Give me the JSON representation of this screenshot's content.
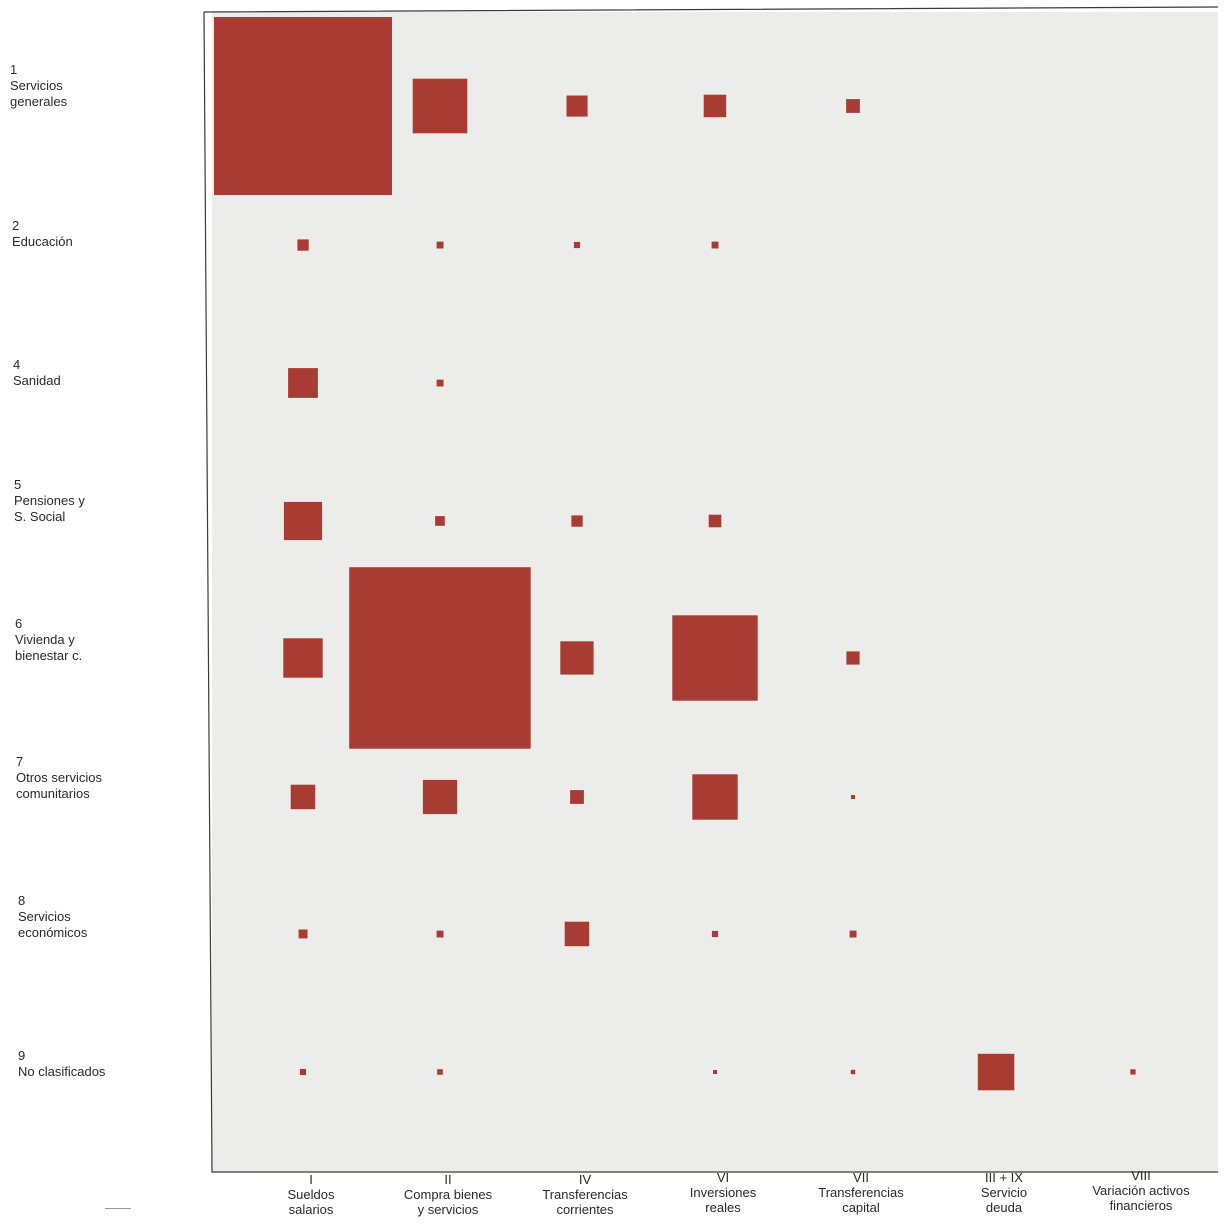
{
  "chart_data": {
    "type": "heatmap",
    "rows": [
      {
        "code": "1",
        "lines": [
          "Servicios",
          "generales"
        ]
      },
      {
        "code": "2",
        "lines": [
          "Educación"
        ]
      },
      {
        "code": "4",
        "lines": [
          "Sanidad"
        ]
      },
      {
        "code": "5",
        "lines": [
          "Pensiones y",
          "S. Social"
        ]
      },
      {
        "code": "6",
        "lines": [
          "Vivienda y",
          "bienestar c."
        ]
      },
      {
        "code": "7",
        "lines": [
          "Otros servicios",
          "comunitarios"
        ]
      },
      {
        "code": "8",
        "lines": [
          "Servicios",
          "económicos"
        ]
      },
      {
        "code": "9",
        "lines": [
          "No clasificados"
        ]
      }
    ],
    "columns": [
      {
        "code": "I",
        "lines": [
          "Sueldos",
          "salarios"
        ]
      },
      {
        "code": "II",
        "lines": [
          "Compra bienes",
          "y servicios"
        ]
      },
      {
        "code": "IV",
        "lines": [
          "Transferencias",
          "corrientes"
        ]
      },
      {
        "code": "VI",
        "lines": [
          "Inversiones",
          "reales"
        ]
      },
      {
        "code": "VII",
        "lines": [
          "Transferencias",
          "capital"
        ]
      },
      {
        "code": "III + IX",
        "lines": [
          "Servicio",
          "deuda"
        ]
      },
      {
        "code": "VIII",
        "lines": [
          "Variación activos",
          "financieros"
        ]
      }
    ],
    "cells": [
      {
        "row": 0,
        "col": 0,
        "value": 100
      },
      {
        "row": 0,
        "col": 1,
        "value": 9.4
      },
      {
        "row": 0,
        "col": 2,
        "value": 1.4
      },
      {
        "row": 0,
        "col": 3,
        "value": 1.6
      },
      {
        "row": 0,
        "col": 4,
        "value": 0.6
      },
      {
        "row": 1,
        "col": 0,
        "value": 0.4
      },
      {
        "row": 1,
        "col": 1,
        "value": 0.15
      },
      {
        "row": 1,
        "col": 2,
        "value": 0.12
      },
      {
        "row": 1,
        "col": 3,
        "value": 0.15
      },
      {
        "row": 2,
        "col": 0,
        "value": 2.8
      },
      {
        "row": 2,
        "col": 1,
        "value": 0.15
      },
      {
        "row": 3,
        "col": 0,
        "value": 4.6
      },
      {
        "row": 3,
        "col": 1,
        "value": 0.3
      },
      {
        "row": 3,
        "col": 2,
        "value": 0.4
      },
      {
        "row": 3,
        "col": 3,
        "value": 0.5
      },
      {
        "row": 4,
        "col": 0,
        "value": 4.9
      },
      {
        "row": 4,
        "col": 1,
        "value": 104
      },
      {
        "row": 4,
        "col": 2,
        "value": 3.5
      },
      {
        "row": 4,
        "col": 3,
        "value": 23
      },
      {
        "row": 4,
        "col": 4,
        "value": 0.55
      },
      {
        "row": 5,
        "col": 0,
        "value": 1.9
      },
      {
        "row": 5,
        "col": 1,
        "value": 3.7
      },
      {
        "row": 5,
        "col": 2,
        "value": 0.6
      },
      {
        "row": 5,
        "col": 3,
        "value": 6.5
      },
      {
        "row": 5,
        "col": 4,
        "value": 0.05
      },
      {
        "row": 6,
        "col": 0,
        "value": 0.25
      },
      {
        "row": 6,
        "col": 1,
        "value": 0.15
      },
      {
        "row": 6,
        "col": 2,
        "value": 1.9
      },
      {
        "row": 6,
        "col": 3,
        "value": 0.12
      },
      {
        "row": 6,
        "col": 4,
        "value": 0.15
      },
      {
        "row": 7,
        "col": 0,
        "value": 0.12
      },
      {
        "row": 7,
        "col": 1,
        "value": 0.1
      },
      {
        "row": 7,
        "col": 3,
        "value": 0.05
      },
      {
        "row": 7,
        "col": 4,
        "value": 0.06
      },
      {
        "row": 7,
        "col": 5,
        "value": 4.2
      },
      {
        "row": 7,
        "col": 6,
        "value": 0.09
      }
    ],
    "grid": false,
    "legend": "none",
    "colors": {
      "cell": "#a83c33",
      "plot_background": "#ececeb",
      "frame": "#3a3a3a"
    }
  }
}
